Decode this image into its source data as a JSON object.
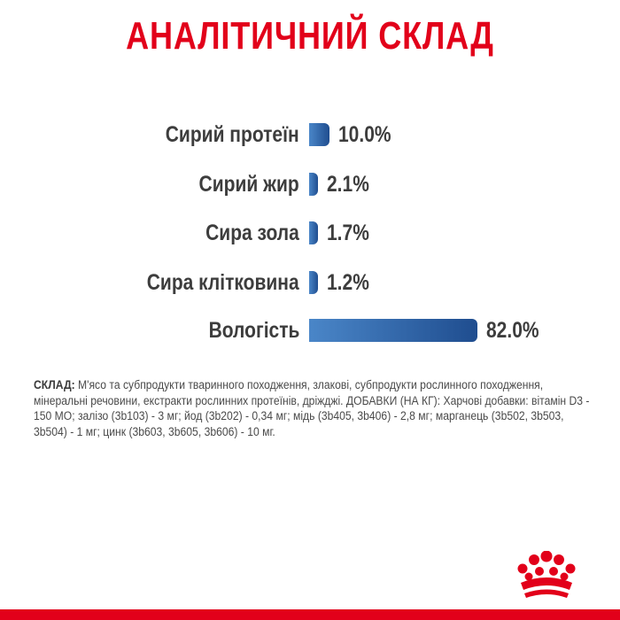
{
  "title": "АНАЛІТИЧНИЙ СКЛАД",
  "colors": {
    "title": "#e2001a",
    "bar_light": "#4a86c8",
    "bar_dark": "#1f4d8f",
    "footer": "#e2001a",
    "logo": "#e2001a"
  },
  "analysis": [
    {
      "label": "Сирий протеїн",
      "value": "10.0%",
      "percent": 10.0
    },
    {
      "label": "Сирий жир",
      "value": "2.1%",
      "percent": 2.1
    },
    {
      "label": "Сира зола",
      "value": "1.7%",
      "percent": 1.7
    },
    {
      "label": "Сира клітковина",
      "value": "1.2%",
      "percent": 1.2
    },
    {
      "label": "Вологість",
      "value": "82.0%",
      "percent": 82.0
    }
  ],
  "composition": {
    "lead": "СКЛАД:",
    "text": " М'ясо та субпродукти тваринного походження, злакові, субпродукти рослинного походження, мінеральні речовини, екстракти рослинних протеїнів, дріжджі. ДОБАВКИ (НА КГ): Харчові добавки: вітамін D3 - 150 МО; залізо (3b103) - 3 мг; йод (3b202) - 0,34 мг; мідь (3b405, 3b406) - 2,8 мг; марганець (3b502, 3b503, 3b504) - 1 мг; цинк (3b603, 3b605, 3b606) - 10 мг."
  },
  "logo": {
    "icon": "crown-icon"
  }
}
